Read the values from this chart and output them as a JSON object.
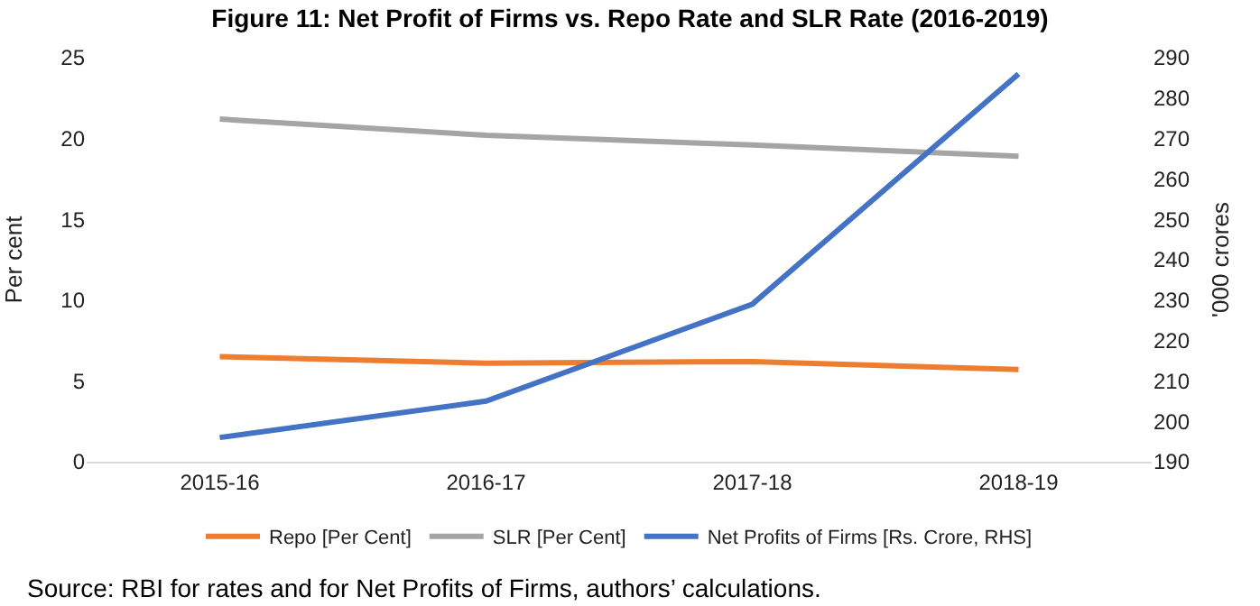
{
  "chart_data": {
    "type": "line",
    "title": "Figure 11: Net Profit of Firms vs. Repo Rate and SLR Rate (2016-2019)",
    "categories": [
      "2015-16",
      "2016-17",
      "2017-18",
      "2018-19"
    ],
    "ylabel": "Per cent",
    "y2label": "'000 crores",
    "ylim": [
      0,
      25
    ],
    "yticks": [
      0,
      5,
      10,
      15,
      20,
      25
    ],
    "y2lim": [
      190,
      290
    ],
    "y2ticks": [
      190,
      200,
      210,
      220,
      230,
      240,
      250,
      260,
      270,
      280,
      290
    ],
    "series": [
      {
        "name": "Repo [Per Cent]",
        "color": "#ed7d31",
        "values": [
          6.5,
          6.1,
          6.2,
          5.7
        ]
      },
      {
        "name": "SLR [Per Cent]",
        "color": "#a5a5a5",
        "values": [
          21.2,
          20.2,
          19.6,
          18.9
        ]
      },
      {
        "name": "Net Profits of Firms [Rs. Crore, RHS]",
        "color": "#4472c4",
        "axis": "y2",
        "values": [
          196,
          205,
          229,
          286
        ]
      }
    ],
    "legend": "bottom",
    "grid": false,
    "annotations": [
      "Source: RBI for rates and for Net Profits of Firms, authors’ calculations."
    ]
  }
}
